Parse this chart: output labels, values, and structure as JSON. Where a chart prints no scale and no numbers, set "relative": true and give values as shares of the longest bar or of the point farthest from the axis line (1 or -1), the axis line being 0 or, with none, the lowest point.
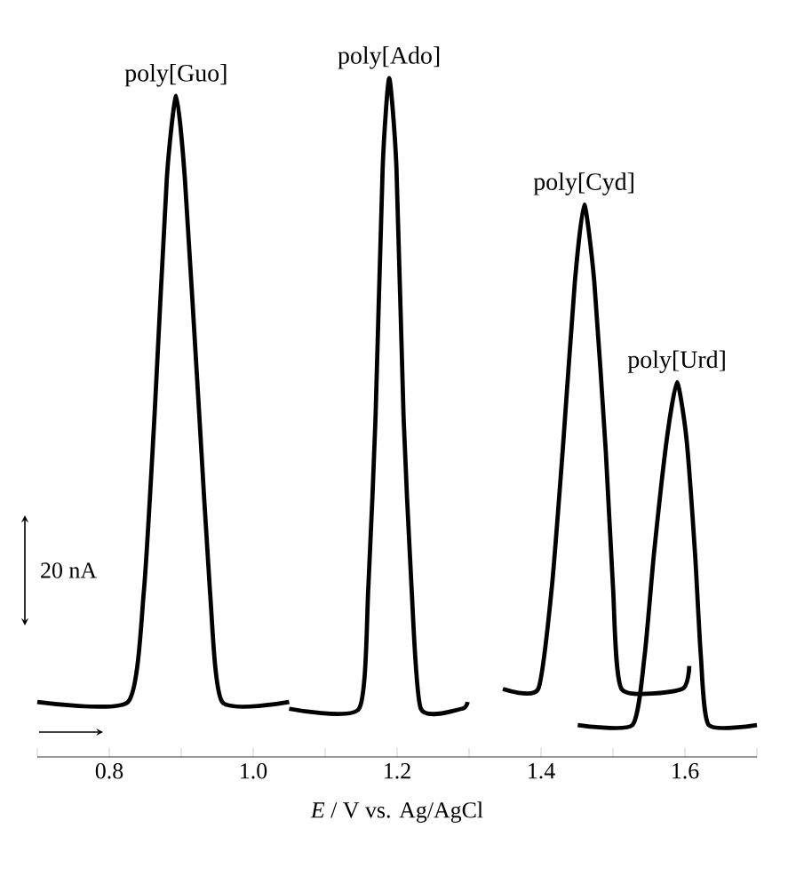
{
  "chart_data": {
    "type": "line",
    "relative": true,
    "xlabel": "*E* / V vs. Ag/AgCl",
    "xlim": [
      0.7,
      1.7
    ],
    "xticks": [
      {
        "value": 0.7,
        "label": null
      },
      {
        "value": 0.8,
        "label": "0.8"
      },
      {
        "value": 0.9,
        "label": null
      },
      {
        "value": 1.0,
        "label": "1.0"
      },
      {
        "value": 1.1,
        "label": null
      },
      {
        "value": 1.2,
        "label": "1.2"
      },
      {
        "value": 1.3,
        "label": null
      },
      {
        "value": 1.4,
        "label": "1.4"
      },
      {
        "value": 1.5,
        "label": null
      },
      {
        "value": 1.6,
        "label": "1.6"
      },
      {
        "value": 1.7,
        "label": null
      }
    ],
    "tick_labels": "x",
    "grid": false,
    "legend": false,
    "marker": "none",
    "line_style": "solid",
    "annotations": [
      "20 nA"
    ],
    "series": [
      {
        "name": "poly[Guo]",
        "color": "#000000",
        "x": [
          0.7,
          0.826,
          0.848,
          0.863,
          0.88,
          0.893,
          0.905,
          0.925,
          0.94,
          0.957,
          1.05
        ],
        "values": [
          0.081,
          0.081,
          0.243,
          0.505,
          0.853,
          0.974,
          0.853,
          0.505,
          0.243,
          0.081,
          0.081
        ]
      },
      {
        "name": "poly[Ado]",
        "color": "#000000",
        "x": [
          1.05,
          1.147,
          1.16,
          1.17,
          1.18,
          1.189,
          1.199,
          1.209,
          1.22,
          1.233,
          1.29,
          1.298
        ],
        "values": [
          0.071,
          0.071,
          0.25,
          0.5,
          0.87,
          1.0,
          0.87,
          0.5,
          0.25,
          0.071,
          0.071,
          0.081
        ]
      },
      {
        "name": "poly[Cyd]",
        "color": "#000000",
        "x": [
          1.347,
          1.396,
          1.415,
          1.43,
          1.447,
          1.46,
          1.474,
          1.49,
          1.5,
          1.512,
          1.596,
          1.606
        ],
        "values": [
          0.1,
          0.1,
          0.25,
          0.45,
          0.7,
          0.814,
          0.7,
          0.45,
          0.25,
          0.1,
          0.1,
          0.134
        ]
      },
      {
        "name": "poly[Urd]",
        "color": "#000000",
        "x": [
          1.451,
          1.527,
          1.544,
          1.557,
          1.575,
          1.589,
          1.602,
          1.614,
          1.622,
          1.633,
          1.7
        ],
        "values": [
          0.047,
          0.047,
          0.15,
          0.3,
          0.47,
          0.552,
          0.47,
          0.3,
          0.15,
          0.047,
          0.047
        ]
      }
    ]
  }
}
